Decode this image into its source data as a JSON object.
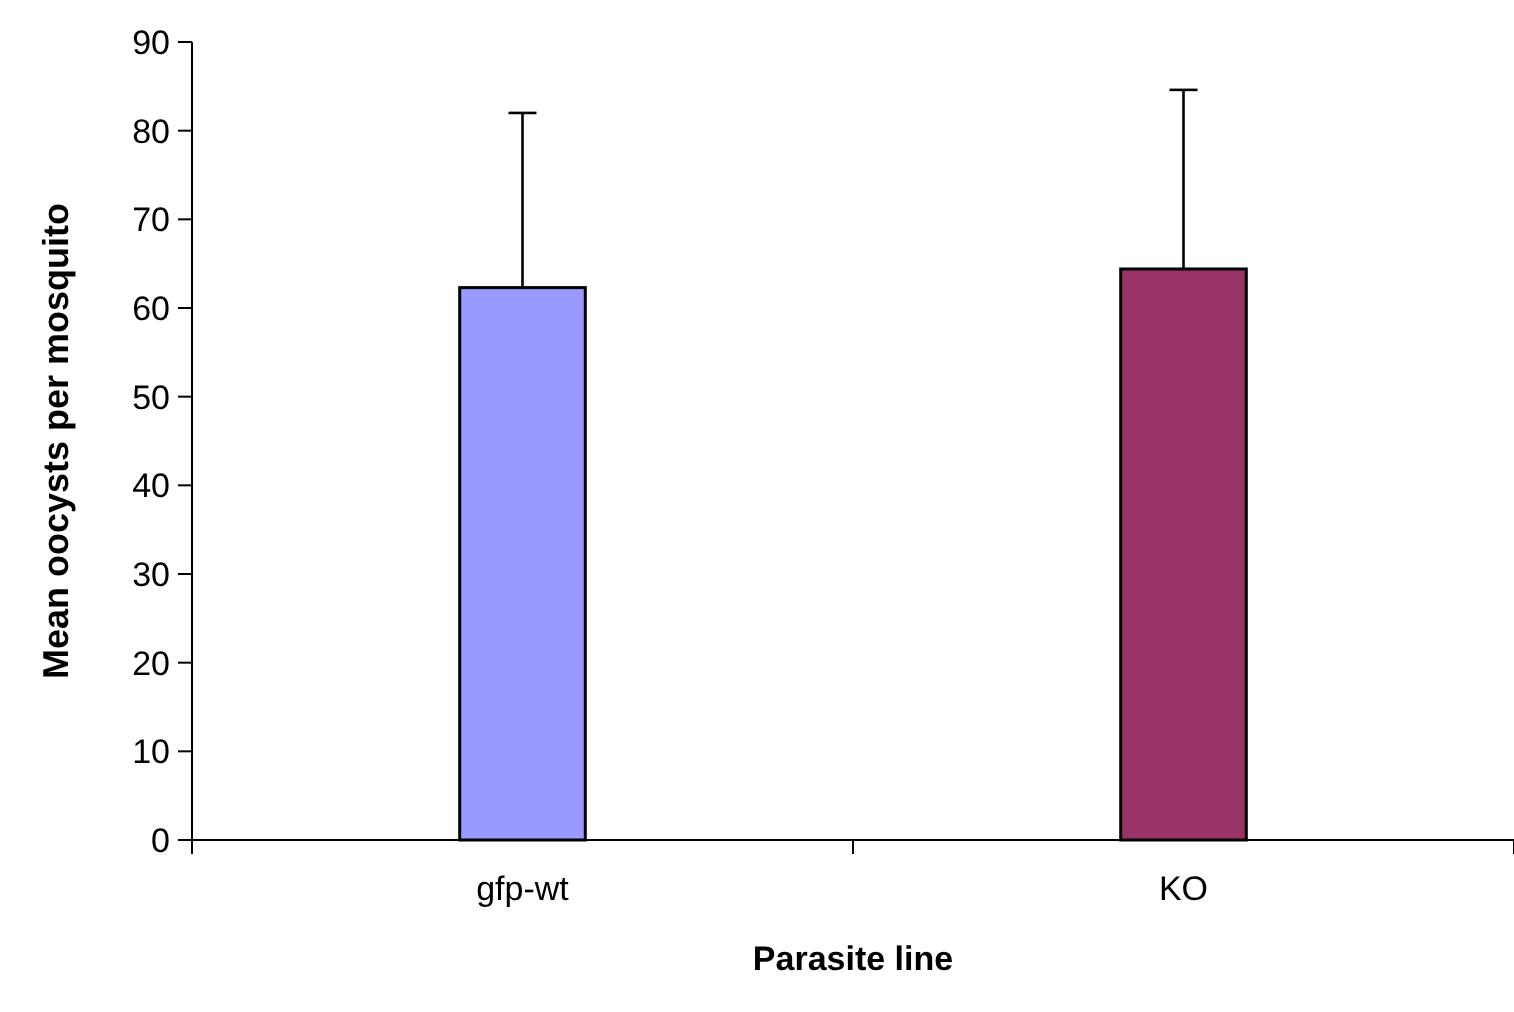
{
  "chart_data": {
    "type": "bar",
    "xlabel": "Parasite line",
    "ylabel": "Mean oocysts per mosquito",
    "categories": [
      "gfp-wt",
      "KO"
    ],
    "values": [
      62.3,
      64.4
    ],
    "colors": [
      "#9999ff",
      "#993366"
    ],
    "errors": [
      [
        62.3,
        82.0
      ],
      [
        64.4,
        84.6
      ]
    ],
    "ylim": [
      0,
      90
    ],
    "yticks": [
      0,
      10,
      20,
      30,
      40,
      50,
      60,
      70,
      80,
      90
    ],
    "grid": false
  }
}
